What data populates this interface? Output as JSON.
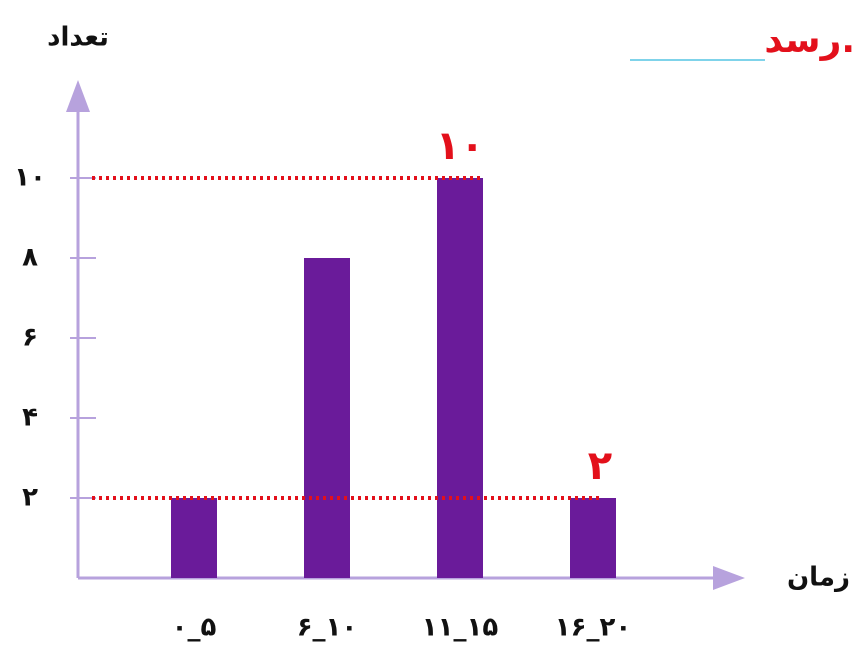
{
  "chart_data": {
    "type": "bar",
    "note_text": "رسد.",
    "y_label": "تعداد",
    "x_label": "زمان",
    "categories": [
      "۰_۵",
      "۶_۱۰",
      "۱۱_۱۵",
      "۱۶_۲۰"
    ],
    "values": [
      2,
      8,
      10,
      2
    ],
    "color": "#6a1b9a",
    "ylim": [
      0,
      12
    ],
    "yticks": [
      {
        "value": 2,
        "label": "۲"
      },
      {
        "value": 4,
        "label": "۴"
      },
      {
        "value": 6,
        "label": "۶"
      },
      {
        "value": 8,
        "label": "۸"
      },
      {
        "value": 10,
        "label": "۱۰"
      }
    ],
    "annotations": [
      {
        "value": 10,
        "label": "۱۰"
      },
      {
        "value": 2,
        "label": "۲"
      }
    ]
  }
}
